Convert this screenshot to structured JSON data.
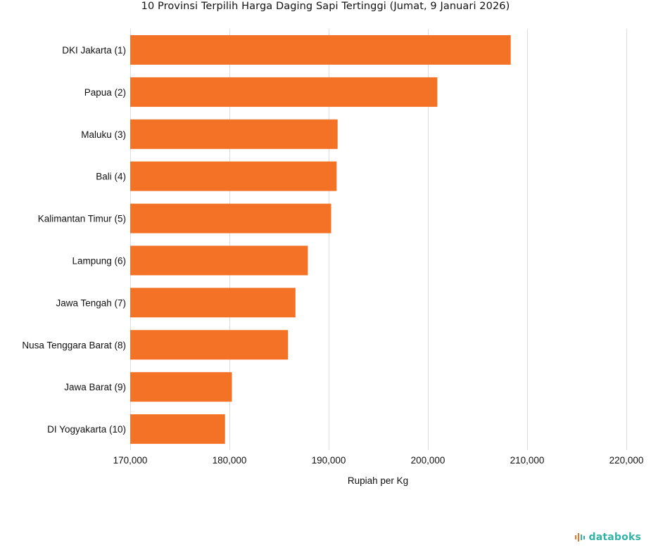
{
  "chart_data": {
    "type": "bar",
    "orientation": "horizontal",
    "title": "10 Provinsi Terpilih Harga Daging Sapi Tertinggi (Jumat, 9 Januari 2026)",
    "xlabel": "Rupiah per Kg",
    "ylabel": "",
    "xlim": [
      170000,
      220000
    ],
    "ticks": [
      170000,
      180000,
      190000,
      200000,
      210000,
      220000
    ],
    "tick_labels": [
      "170,000",
      "180,000",
      "190,000",
      "200,000",
      "210,000",
      "220,000"
    ],
    "categories": [
      "DKI Jakarta (1)",
      "Papua (2)",
      "Maluku (3)",
      "Bali (4)",
      "Kalimantan Timur (5)",
      "Lampung (6)",
      "Jawa Tengah (7)",
      "Nusa Tenggara Barat (8)",
      "Jawa Barat (9)",
      "DI Yogyakarta (10)"
    ],
    "values": [
      208350,
      200950,
      190900,
      190800,
      190250,
      187900,
      186650,
      185900,
      180250,
      179550
    ],
    "bar_color": "#f37226",
    "grid": true
  },
  "brand": {
    "name": "databoks",
    "color": "#33b3a6"
  }
}
